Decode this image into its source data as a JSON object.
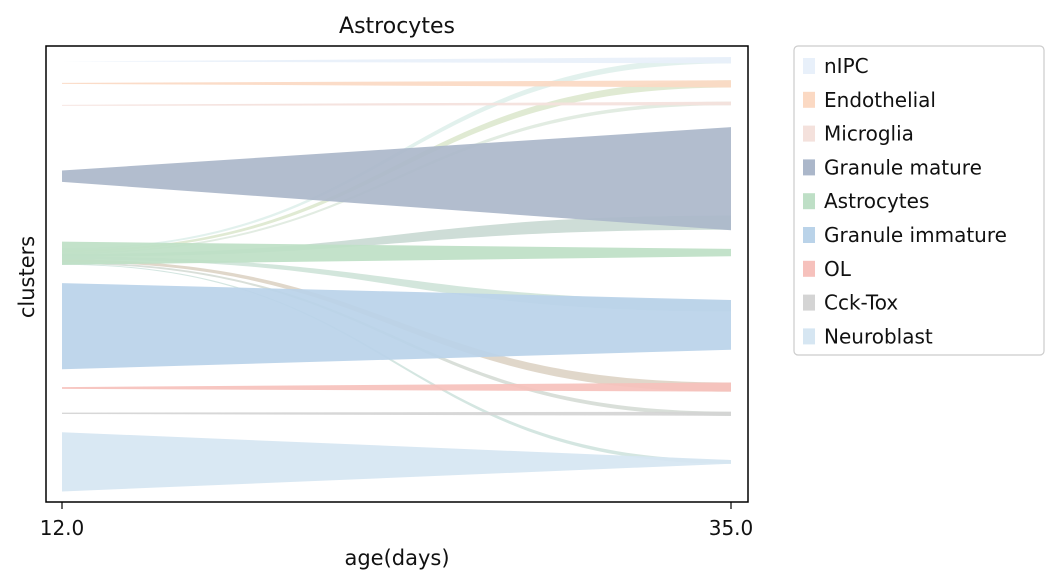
{
  "chart_data": {
    "type": "area",
    "title": "Astrocytes",
    "xlabel": "age(days)",
    "ylabel": "clusters",
    "x_ticks": [
      "12.0",
      "35.0"
    ],
    "x": [
      12.0,
      35.0
    ],
    "ylim": [
      0,
      1
    ],
    "grid": false,
    "legend_position": "outside-right",
    "clusters": [
      {
        "name": "nIPC",
        "color": "#e8f0fa",
        "band_12": [
          0.966,
          0.966
        ],
        "band_35": [
          0.962,
          0.976
        ]
      },
      {
        "name": "Endothelial",
        "color": "#fbd9c3",
        "band_12": [
          0.917,
          0.919
        ],
        "band_35": [
          0.909,
          0.925
        ]
      },
      {
        "name": "Microglia",
        "color": "#f4e1dc",
        "band_12": [
          0.869,
          0.871
        ],
        "band_35": [
          0.87,
          0.878
        ]
      },
      {
        "name": "Granule mature",
        "color": "#abb7ca",
        "band_12": [
          0.702,
          0.727
        ],
        "band_35": [
          0.596,
          0.822
        ]
      },
      {
        "name": "Astrocytes",
        "color": "#bedfc6",
        "band_12": [
          0.52,
          0.571
        ],
        "band_35": [
          0.539,
          0.555
        ]
      },
      {
        "name": "Granule immature",
        "color": "#bad3e9",
        "band_12": [
          0.291,
          0.48
        ],
        "band_35": [
          0.334,
          0.443
        ]
      },
      {
        "name": "OL",
        "color": "#f6c1bc",
        "band_12": [
          0.248,
          0.252
        ],
        "band_35": [
          0.242,
          0.262
        ]
      },
      {
        "name": "Cck-Tox",
        "color": "#d4d4d4",
        "band_12": [
          0.193,
          0.196
        ],
        "band_35": [
          0.189,
          0.198
        ]
      },
      {
        "name": "Neuroblast",
        "color": "#d6e6f2",
        "band_12": [
          0.023,
          0.153
        ],
        "band_35": [
          0.084,
          0.092
        ]
      }
    ],
    "flows": [
      {
        "from": "Astrocytes",
        "to": "nIPC",
        "color": "#d6ebe6",
        "y12": [
          0.553,
          0.557
        ],
        "y35": [
          0.962,
          0.975
        ],
        "opacity": 0.7
      },
      {
        "from": "Astrocytes",
        "to": "Endothelial",
        "color": "#d6e3c4",
        "y12": [
          0.548,
          0.553
        ],
        "y35": [
          0.909,
          0.925
        ],
        "opacity": 0.75
      },
      {
        "from": "Astrocytes",
        "to": "Microglia",
        "color": "#d8e6d8",
        "y12": [
          0.544,
          0.548
        ],
        "y35": [
          0.87,
          0.878
        ],
        "opacity": 0.75
      },
      {
        "from": "Astrocytes",
        "to": "Granule mature",
        "color": "#b9cec6",
        "y12": [
          0.538,
          0.544
        ],
        "y35": [
          0.597,
          0.628
        ],
        "opacity": 0.7
      },
      {
        "from": "Astrocytes",
        "to": "Granule immature",
        "color": "#c1dccd",
        "y12": [
          0.532,
          0.538
        ],
        "y35": [
          0.418,
          0.443
        ],
        "opacity": 0.7
      },
      {
        "from": "Astrocytes",
        "to": "OL",
        "color": "#d8cdbd",
        "y12": [
          0.526,
          0.532
        ],
        "y35": [
          0.242,
          0.262
        ],
        "opacity": 0.8
      },
      {
        "from": "Astrocytes",
        "to": "Cck-Tox",
        "color": "#cfd7cf",
        "y12": [
          0.522,
          0.526
        ],
        "y35": [
          0.189,
          0.198
        ],
        "opacity": 0.8
      },
      {
        "from": "Astrocytes",
        "to": "Neuroblast",
        "color": "#c9e0d9",
        "y12": [
          0.52,
          0.522
        ],
        "y35": [
          0.084,
          0.092
        ],
        "opacity": 0.8
      }
    ]
  }
}
